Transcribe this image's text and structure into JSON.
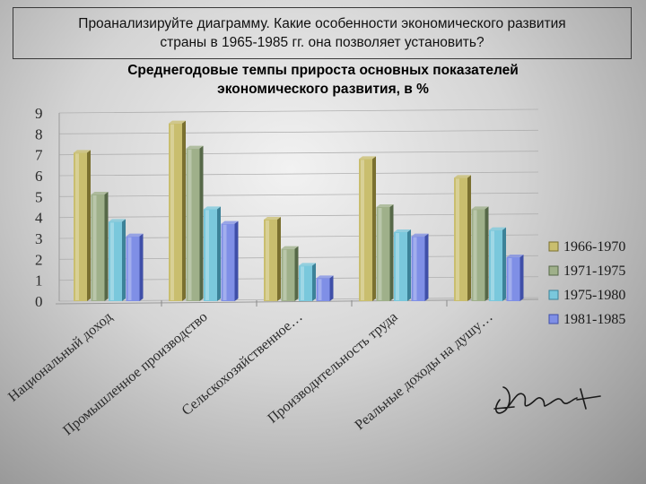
{
  "question": {
    "line1": "Проанализируйте диаграмму. Какие особенности экономического развития",
    "line2": "страны в 1965-1985 гг. она позволяет установить?"
  },
  "chart_data": {
    "type": "bar",
    "title": [
      "Среднегодовые темпы прироста основных показателей",
      "экономического развития, в %"
    ],
    "categories": [
      "Национальный доход",
      "Промышленное производство",
      "Сельскохозяйственное…",
      "Производительность труда",
      "Реальные доходы на душу…"
    ],
    "series": [
      {
        "name": "1966-1970",
        "values": [
          7.1,
          8.5,
          3.9,
          6.8,
          5.9
        ]
      },
      {
        "name": "1971-1975",
        "values": [
          5.1,
          7.3,
          2.5,
          4.5,
          4.4
        ]
      },
      {
        "name": "1975-1980",
        "values": [
          3.8,
          4.4,
          1.7,
          3.3,
          3.4
        ]
      },
      {
        "name": "1981-1985",
        "values": [
          3.1,
          3.7,
          1.1,
          3.1,
          2.1
        ]
      }
    ],
    "yticks": [
      0,
      1,
      2,
      3,
      4,
      5,
      6,
      7,
      8,
      9
    ],
    "ylim": [
      0,
      9
    ],
    "grid": true,
    "legend_position": "right",
    "colors": [
      "#c9be6e",
      "#9fb08a",
      "#7ac8dc",
      "#7f8fe6"
    ],
    "shade_colors": [
      "#7a7030",
      "#566848",
      "#3c8298",
      "#3f4fa8"
    ]
  }
}
